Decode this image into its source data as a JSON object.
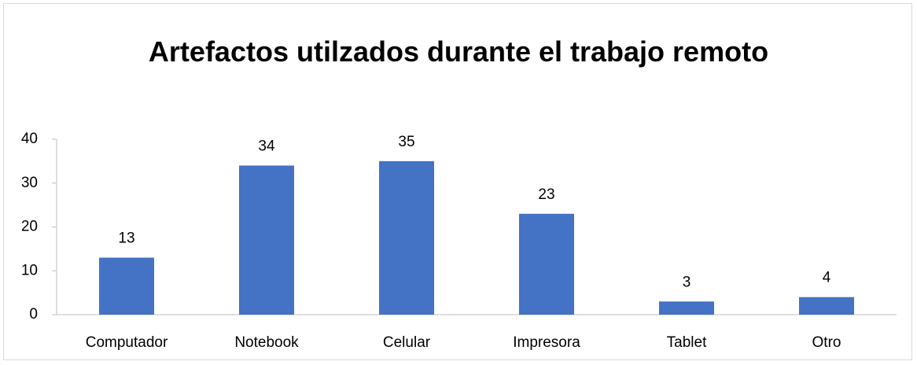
{
  "chart_data": {
    "type": "bar",
    "title": "Artefactos utilzados durante el trabajo remoto",
    "categories": [
      "Computador",
      "Notebook",
      "Celular",
      "Impresora",
      "Tablet",
      "Otro"
    ],
    "values": [
      13,
      34,
      35,
      23,
      3,
      4
    ],
    "color": "#4472c4",
    "ylim": [
      0,
      40
    ],
    "yticks": [
      0,
      10,
      20,
      30,
      40
    ],
    "grid": false
  }
}
